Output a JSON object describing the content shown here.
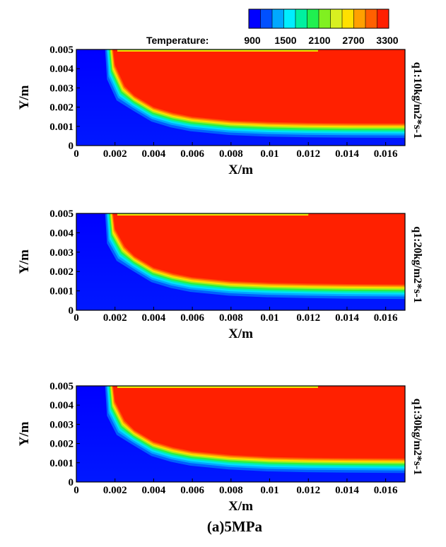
{
  "chart_data": {
    "type": "heatmap",
    "title": "",
    "caption": "(a)5MPa",
    "colorbar": {
      "label": "Temperature:",
      "ticks": [
        900,
        1500,
        2100,
        2700,
        3300
      ],
      "range": [
        300,
        3500
      ],
      "colors": [
        "#0000ff",
        "#0050ff",
        "#00a8ff",
        "#00eeff",
        "#00f0a0",
        "#20f050",
        "#80f020",
        "#d8f020",
        "#ffe000",
        "#ffa000",
        "#ff6000",
        "#ff2000"
      ]
    },
    "panels": [
      {
        "name": "q1:10kg/m2*s-1",
        "xlabel": "X/m",
        "ylabel": "Y/m",
        "xlim": [
          0,
          0.017
        ],
        "ylim": [
          0,
          0.005
        ],
        "xticks": [
          "0",
          "0.002",
          "0.004",
          "0.006",
          "0.008",
          "0.01",
          "0.012",
          "0.014",
          "0.016"
        ],
        "yticks": [
          "0",
          "0.001",
          "0.002",
          "0.003",
          "0.004",
          "0.005"
        ],
        "flame_front": {
          "x": [
            0.0019,
            0.002,
            0.0025,
            0.003,
            0.004,
            0.005,
            0.006,
            0.008,
            0.01,
            0.012,
            0.014,
            0.017
          ],
          "y": [
            0.005,
            0.0042,
            0.0031,
            0.0026,
            0.002,
            0.0017,
            0.0015,
            0.0013,
            0.00122,
            0.00118,
            0.00116,
            0.00115
          ]
        },
        "cold_wall_region_end_x": 0.0125
      },
      {
        "name": "q1:20kg/m2*s-1",
        "xlabel": "X/m",
        "ylabel": "Y/m",
        "xlim": [
          0,
          0.017
        ],
        "ylim": [
          0,
          0.005
        ],
        "xticks": [
          "0",
          "0.002",
          "0.004",
          "0.006",
          "0.008",
          "0.01",
          "0.012",
          "0.014",
          "0.016"
        ],
        "yticks": [
          "0",
          "0.001",
          "0.002",
          "0.003",
          "0.004",
          "0.005"
        ],
        "flame_front": {
          "x": [
            0.0019,
            0.002,
            0.0025,
            0.003,
            0.004,
            0.005,
            0.006,
            0.008,
            0.01,
            0.012,
            0.014,
            0.017
          ],
          "y": [
            0.005,
            0.0042,
            0.0033,
            0.0028,
            0.0022,
            0.0019,
            0.0017,
            0.0015,
            0.00142,
            0.00138,
            0.00135,
            0.00133
          ]
        },
        "cold_wall_region_end_x": 0.012
      },
      {
        "name": "q1:30kg/m2*s-1",
        "xlabel": "X/m",
        "ylabel": "Y/m",
        "xlim": [
          0,
          0.017
        ],
        "ylim": [
          0,
          0.005
        ],
        "xticks": [
          "0",
          "0.002",
          "0.004",
          "0.006",
          "0.008",
          "0.01",
          "0.012",
          "0.014",
          "0.016"
        ],
        "yticks": [
          "0",
          "0.001",
          "0.002",
          "0.003",
          "0.004",
          "0.005"
        ],
        "flame_front": {
          "x": [
            0.0019,
            0.002,
            0.0025,
            0.003,
            0.004,
            0.005,
            0.006,
            0.008,
            0.01,
            0.012,
            0.014,
            0.017
          ],
          "y": [
            0.005,
            0.0042,
            0.0032,
            0.0027,
            0.0021,
            0.0018,
            0.0016,
            0.0014,
            0.0013,
            0.00126,
            0.00124,
            0.00122
          ]
        },
        "cold_wall_region_end_x": 0.0125
      }
    ]
  }
}
